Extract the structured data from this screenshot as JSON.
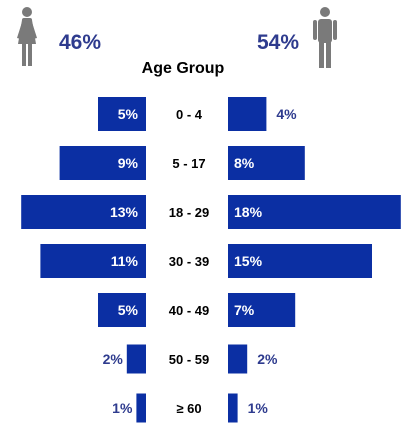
{
  "chart_data": {
    "type": "bar",
    "title": "Age Group",
    "categories": [
      "0 - 4",
      "5 - 17",
      "18 - 29",
      "30 - 39",
      "40 - 49",
      "50 - 59",
      "≥ 60"
    ],
    "series": [
      {
        "name": "female",
        "values": [
          5,
          9,
          13,
          11,
          5,
          2,
          1
        ]
      },
      {
        "name": "male",
        "values": [
          4,
          8,
          18,
          15,
          7,
          2,
          1
        ]
      }
    ],
    "data_labels": {
      "female": [
        "5%",
        "9%",
        "13%",
        "11%",
        "5%",
        "2%",
        "1%"
      ],
      "male": [
        "4%",
        "8%",
        "18%",
        "15%",
        "7%",
        "2%",
        "1%"
      ]
    },
    "totals": {
      "female": "46%",
      "male": "54%"
    },
    "icons": {
      "female": "female-person-icon",
      "male": "male-person-icon"
    },
    "colors": {
      "bar": "#0b2fa3",
      "label_outside": "#2e3b8e",
      "label_inside": "#ffffff",
      "icon": "#7a7a7a"
    },
    "legend": "none",
    "grid": false
  }
}
